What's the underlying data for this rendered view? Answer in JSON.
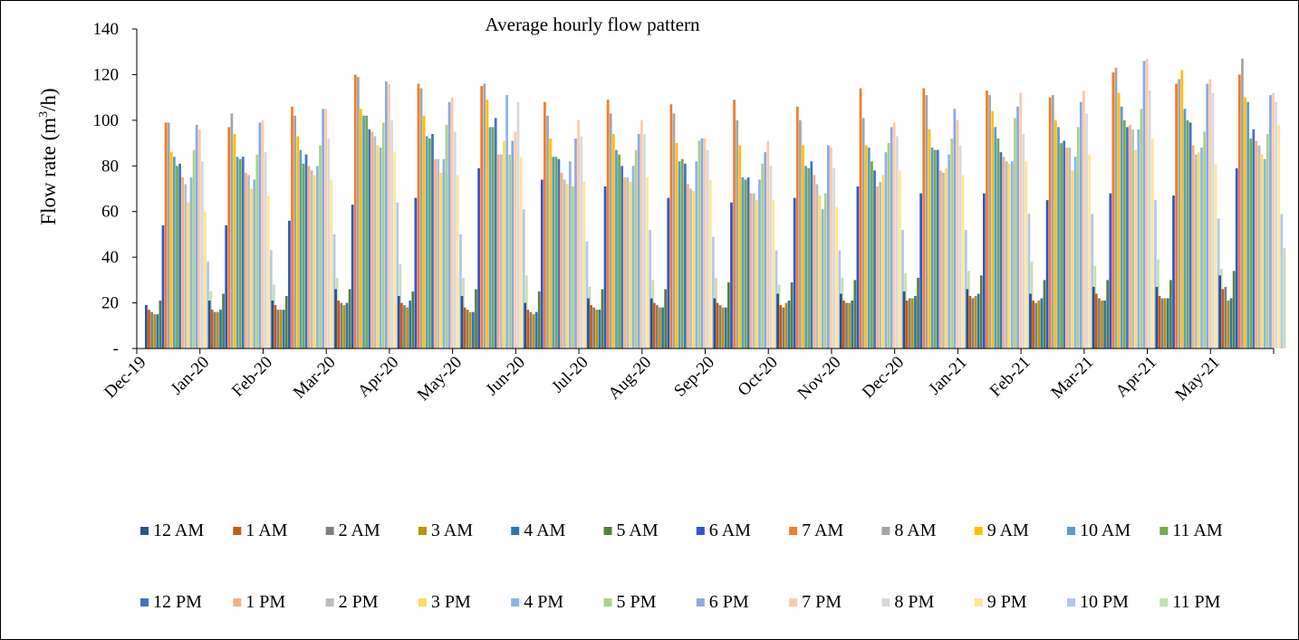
{
  "chart_data": {
    "type": "bar",
    "title": "Average hourly flow pattern",
    "ylabel": "Flow rate (m³/h)",
    "ylabel_base": "Flow rate (m",
    "ylabel_sup": "3",
    "ylabel_tail": "/h)",
    "xlabel": "",
    "ylim": [
      0,
      140
    ],
    "yticks": [
      {
        "value": 0,
        "label": "-"
      },
      {
        "value": 20,
        "label": "20"
      },
      {
        "value": 40,
        "label": "40"
      },
      {
        "value": 60,
        "label": "60"
      },
      {
        "value": 80,
        "label": "80"
      },
      {
        "value": 100,
        "label": "100"
      },
      {
        "value": 120,
        "label": "120"
      },
      {
        "value": 140,
        "label": "140"
      }
    ],
    "grid": false,
    "legend_position": "bottom",
    "categories": [
      "Dec-19",
      "Jan-20",
      "Feb-20",
      "Mar-20",
      "Apr-20",
      "May-20",
      "Jun-20",
      "Jul-20",
      "Aug-20",
      "Sep-20",
      "Oct-20",
      "Nov-20",
      "Dec-20",
      "Jan-21",
      "Feb-21",
      "Mar-21",
      "Apr-21",
      "May-21"
    ],
    "series_names": [
      "12 AM",
      "1 AM",
      "2 AM",
      "3 AM",
      "4 AM",
      "5 AM",
      "6 AM",
      "7 AM",
      "8 AM",
      "9 AM",
      "10 AM",
      "11 AM",
      "12 PM",
      "1 PM",
      "2 PM",
      "3 PM",
      "4 PM",
      "5 PM",
      "6 PM",
      "7 PM",
      "8 PM",
      "9 PM",
      "10 PM",
      "11 PM"
    ],
    "series_colors": [
      "#2F4F8F",
      "#C55A11",
      "#7F7F7F",
      "#BF9000",
      "#2E75B6",
      "#548235",
      "#2F55D4",
      "#ED7D31",
      "#A5A5A5",
      "#FFC000",
      "#5B9BD5",
      "#70AD47",
      "#4472C4",
      "#F4B183",
      "#BDBDBD",
      "#FFD966",
      "#8FB4E3",
      "#A9D18E",
      "#8EA9DB",
      "#F8CBAD",
      "#D9D9D9",
      "#FFE699",
      "#B4C7E7",
      "#C5E0B4"
    ],
    "values_by_category": [
      [
        19,
        17,
        16,
        15,
        15,
        21,
        54,
        99,
        99,
        86,
        84,
        80,
        81,
        75,
        72,
        64,
        75,
        87,
        98,
        96,
        82,
        60,
        38,
        25
      ],
      [
        21,
        17,
        16,
        16,
        17,
        24,
        54,
        97,
        103,
        94,
        84,
        83,
        84,
        77,
        76,
        70,
        74,
        85,
        99,
        100,
        86,
        67,
        43,
        28
      ],
      [
        21,
        19,
        17,
        17,
        17,
        23,
        56,
        106,
        102,
        93,
        87,
        81,
        85,
        80,
        78,
        76,
        80,
        89,
        105,
        105,
        92,
        74,
        50,
        31
      ],
      [
        26,
        21,
        20,
        19,
        20,
        26,
        63,
        120,
        119,
        105,
        102,
        102,
        96,
        95,
        93,
        89,
        88,
        99,
        117,
        116,
        100,
        86,
        64,
        37
      ],
      [
        23,
        20,
        19,
        18,
        21,
        25,
        66,
        116,
        114,
        102,
        93,
        92,
        94,
        83,
        83,
        77,
        83,
        98,
        108,
        110,
        95,
        76,
        50,
        31
      ],
      [
        23,
        18,
        17,
        16,
        16,
        26,
        79,
        115,
        116,
        109,
        97,
        97,
        101,
        85,
        85,
        91,
        111,
        85,
        91,
        95,
        108,
        84,
        61,
        32
      ],
      [
        20,
        17,
        16,
        15,
        16,
        25,
        74,
        108,
        102,
        92,
        84,
        84,
        83,
        77,
        74,
        72,
        82,
        71,
        92,
        100,
        93,
        73,
        47,
        27
      ],
      [
        22,
        19,
        18,
        17,
        17,
        26,
        71,
        109,
        103,
        94,
        87,
        85,
        80,
        75,
        75,
        73,
        80,
        87,
        94,
        100,
        94,
        75,
        52,
        30
      ],
      [
        22,
        20,
        19,
        18,
        18,
        26,
        66,
        107,
        103,
        90,
        82,
        83,
        81,
        72,
        70,
        69,
        82,
        91,
        92,
        92,
        87,
        74,
        49,
        31
      ],
      [
        22,
        20,
        19,
        18,
        18,
        29,
        64,
        109,
        100,
        89,
        75,
        74,
        75,
        68,
        68,
        65,
        74,
        81,
        86,
        91,
        80,
        65,
        43,
        28
      ],
      [
        24,
        19,
        18,
        20,
        21,
        29,
        66,
        106,
        100,
        89,
        80,
        79,
        82,
        76,
        72,
        67,
        61,
        68,
        89,
        88,
        79,
        62,
        43,
        31
      ],
      [
        24,
        21,
        20,
        20,
        21,
        30,
        71,
        114,
        101,
        89,
        88,
        82,
        78,
        71,
        73,
        76,
        86,
        90,
        97,
        99,
        93,
        78,
        52,
        33
      ],
      [
        25,
        21,
        22,
        22,
        23,
        31,
        68,
        114,
        111,
        96,
        88,
        87,
        87,
        78,
        77,
        79,
        85,
        92,
        105,
        100,
        89,
        76,
        52,
        34
      ],
      [
        26,
        23,
        22,
        23,
        24,
        32,
        68,
        113,
        111,
        104,
        97,
        92,
        86,
        84,
        82,
        81,
        82,
        101,
        106,
        112,
        94,
        82,
        59,
        38
      ],
      [
        24,
        21,
        20,
        21,
        22,
        30,
        65,
        110,
        111,
        100,
        97,
        90,
        91,
        88,
        88,
        78,
        84,
        97,
        108,
        113,
        103,
        85,
        59,
        36
      ],
      [
        27,
        24,
        22,
        21,
        21,
        30,
        68,
        121,
        123,
        112,
        106,
        100,
        97,
        98,
        96,
        87,
        96,
        105,
        126,
        127,
        113,
        92,
        65,
        39
      ],
      [
        27,
        23,
        22,
        22,
        22,
        30,
        67,
        116,
        118,
        122,
        105,
        100,
        99,
        89,
        85,
        86,
        88,
        95,
        116,
        118,
        112,
        81,
        57,
        35
      ],
      [
        32,
        26,
        27,
        21,
        22,
        34,
        79,
        120,
        127,
        110,
        108,
        92,
        96,
        91,
        89,
        85,
        83,
        94,
        111,
        112,
        108,
        98,
        59,
        44
      ]
    ]
  }
}
